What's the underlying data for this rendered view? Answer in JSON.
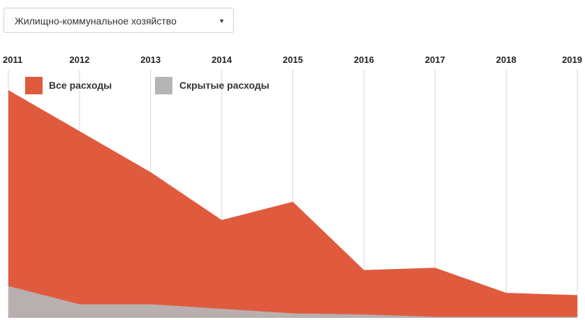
{
  "filter": {
    "selected": "Жилищно-коммунальное хозяйство",
    "arrow_icon": "triangle-down-icon"
  },
  "colors": {
    "all_expenses": "#e05a3e",
    "hidden_expenses": "#b5b5b5",
    "grid": "#d6d6d6"
  },
  "chart_data": {
    "type": "area",
    "title": "",
    "x": [
      "2011",
      "2012",
      "2013",
      "2014",
      "2015",
      "2016",
      "2017",
      "2018",
      "2019"
    ],
    "series": [
      {
        "name": "Все расходы",
        "values": [
          100,
          82,
          64,
          43,
          51,
          21,
          22,
          11,
          10
        ]
      },
      {
        "name": "Скрытые расходы",
        "values": [
          14,
          6,
          6,
          4,
          2,
          1.5,
          0.5,
          0.5,
          0.5
        ]
      }
    ],
    "ylim": [
      0,
      100
    ],
    "grid": true,
    "legend": "top-left"
  }
}
